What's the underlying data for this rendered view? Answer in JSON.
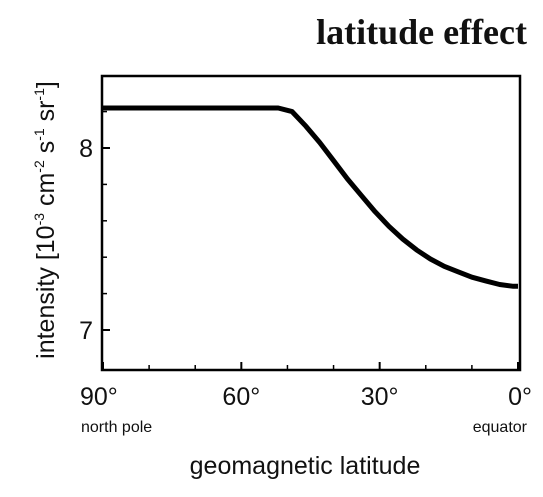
{
  "chart_data": {
    "type": "line",
    "title": "latitude effect",
    "xlabel": "geomagnetic latitude",
    "ylabel": {
      "prefix": "intensity [10",
      "exp1": "-3",
      "mid1": " cm",
      "exp2": "-2",
      "mid2": " s",
      "exp3": "-1",
      "mid3": " sr",
      "exp4": "-1",
      "suffix": "]"
    },
    "x_ticks": [
      90,
      60,
      30,
      0
    ],
    "x_tick_labels": [
      "90°",
      "60°",
      "30°",
      "0°"
    ],
    "x_sub_labels": {
      "left": "north pole",
      "right": "equator"
    },
    "y_ticks": [
      7,
      8
    ],
    "y_tick_labels": [
      "7",
      "8"
    ],
    "xlim": [
      90,
      0
    ],
    "ylim": [
      6.9,
      8.25
    ],
    "grid": false,
    "series": [
      {
        "x": [
          90,
          80,
          70,
          60,
          52,
          49,
          46,
          43,
          40,
          37,
          34,
          31,
          28,
          25,
          22,
          19,
          16,
          13,
          10,
          7,
          4,
          1,
          0
        ],
        "y": [
          8.22,
          8.22,
          8.22,
          8.22,
          8.22,
          8.2,
          8.12,
          8.03,
          7.93,
          7.83,
          7.74,
          7.65,
          7.57,
          7.5,
          7.44,
          7.39,
          7.35,
          7.32,
          7.29,
          7.27,
          7.25,
          7.24,
          7.24
        ],
        "color": "#000000"
      }
    ]
  }
}
